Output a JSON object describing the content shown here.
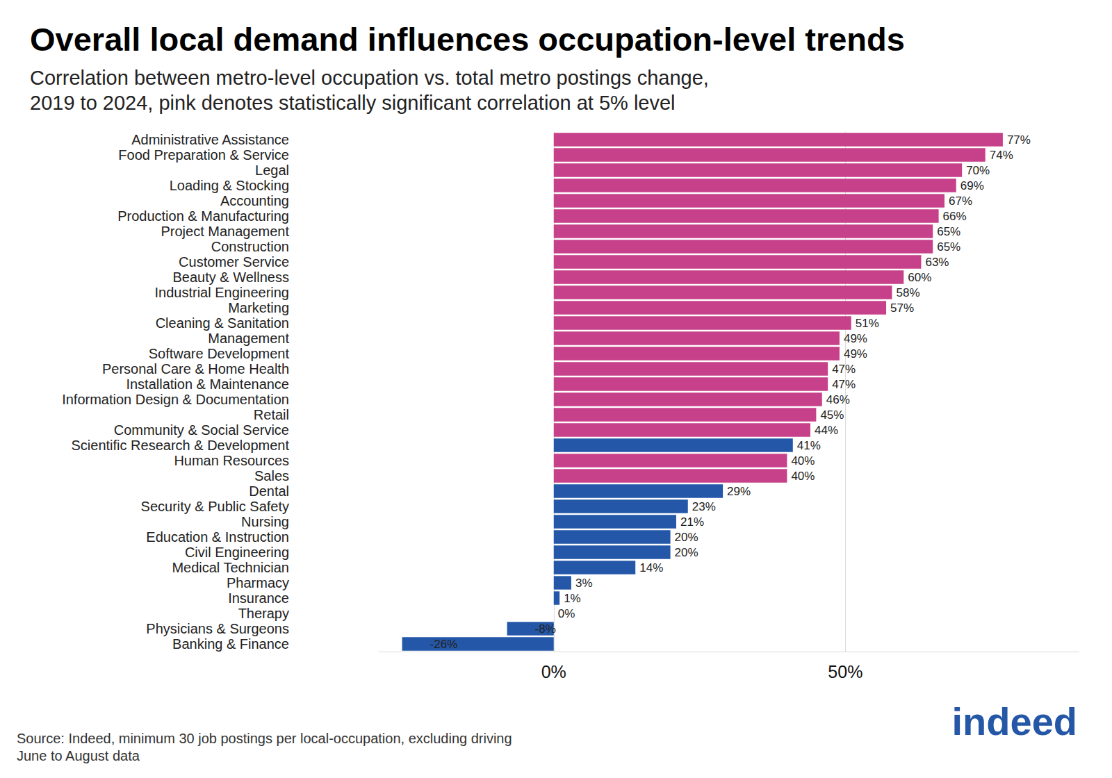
{
  "chart_data": {
    "type": "bar",
    "orientation": "horizontal",
    "title": "Overall local demand influences occupation-level trends",
    "subtitle": [
      "Correlation between metro-level occupation vs. total metro postings change,",
      "2019 to 2024, pink denotes statistically significant correlation at 5% level"
    ],
    "notes": [
      "Source: Indeed, minimum 30 job postings per local-occupation, excluding driving",
      "June to August data"
    ],
    "logo": "indeed",
    "categories": [
      "Administrative Assistance",
      "Food Preparation & Service",
      "Legal",
      "Loading & Stocking",
      "Accounting",
      "Production & Manufacturing",
      "Project Management",
      "Construction",
      "Customer Service",
      "Beauty & Wellness",
      "Industrial Engineering",
      "Marketing",
      "Cleaning & Sanitation",
      "Management",
      "Software Development",
      "Personal Care & Home Health",
      "Installation & Maintenance",
      "Information Design & Documentation",
      "Retail",
      "Community & Social Service",
      "Scientific Research & Development",
      "Human Resources",
      "Sales",
      "Dental",
      "Security & Public Safety",
      "Nursing",
      "Education & Instruction",
      "Civil Engineering",
      "Medical Technician",
      "Pharmacy",
      "Insurance",
      "Therapy",
      "Physicians & Surgeons",
      "Banking & Finance"
    ],
    "values": [
      77,
      74,
      70,
      69,
      67,
      66,
      65,
      65,
      63,
      60,
      58,
      57,
      51,
      49,
      49,
      47,
      47,
      46,
      45,
      44,
      41,
      40,
      40,
      29,
      23,
      21,
      20,
      20,
      14,
      3,
      1,
      0,
      -8,
      -26
    ],
    "value_labels": [
      "77%",
      "74%",
      "70%",
      "69%",
      "67%",
      "66%",
      "65%",
      "65%",
      "63%",
      "60%",
      "58%",
      "57%",
      "51%",
      "49%",
      "49%",
      "47%",
      "47%",
      "46%",
      "45%",
      "44%",
      "41%",
      "40%",
      "40%",
      "29%",
      "23%",
      "21%",
      "20%",
      "20%",
      "14%",
      "3%",
      "1%",
      "0%",
      "-8%",
      "-26%"
    ],
    "colors": [
      "#c7418a",
      "#c7418a",
      "#c7418a",
      "#c7418a",
      "#c7418a",
      "#c7418a",
      "#c7418a",
      "#c7418a",
      "#c7418a",
      "#c7418a",
      "#c7418a",
      "#c7418a",
      "#c7418a",
      "#c7418a",
      "#c7418a",
      "#c7418a",
      "#c7418a",
      "#c7418a",
      "#c7418a",
      "#c7418a",
      "#2457a8",
      "#c7418a",
      "#c7418a",
      "#2457a8",
      "#2457a8",
      "#2457a8",
      "#2457a8",
      "#2457a8",
      "#2457a8",
      "#2457a8",
      "#2457a8",
      "#2457a8",
      "#2457a8",
      "#2457a8"
    ],
    "xlim": [
      -30,
      90
    ],
    "xticks": [
      {
        "value": 0,
        "label": "0%"
      },
      {
        "value": 50,
        "label": "50%"
      }
    ],
    "grid": true,
    "data_labels": true
  }
}
